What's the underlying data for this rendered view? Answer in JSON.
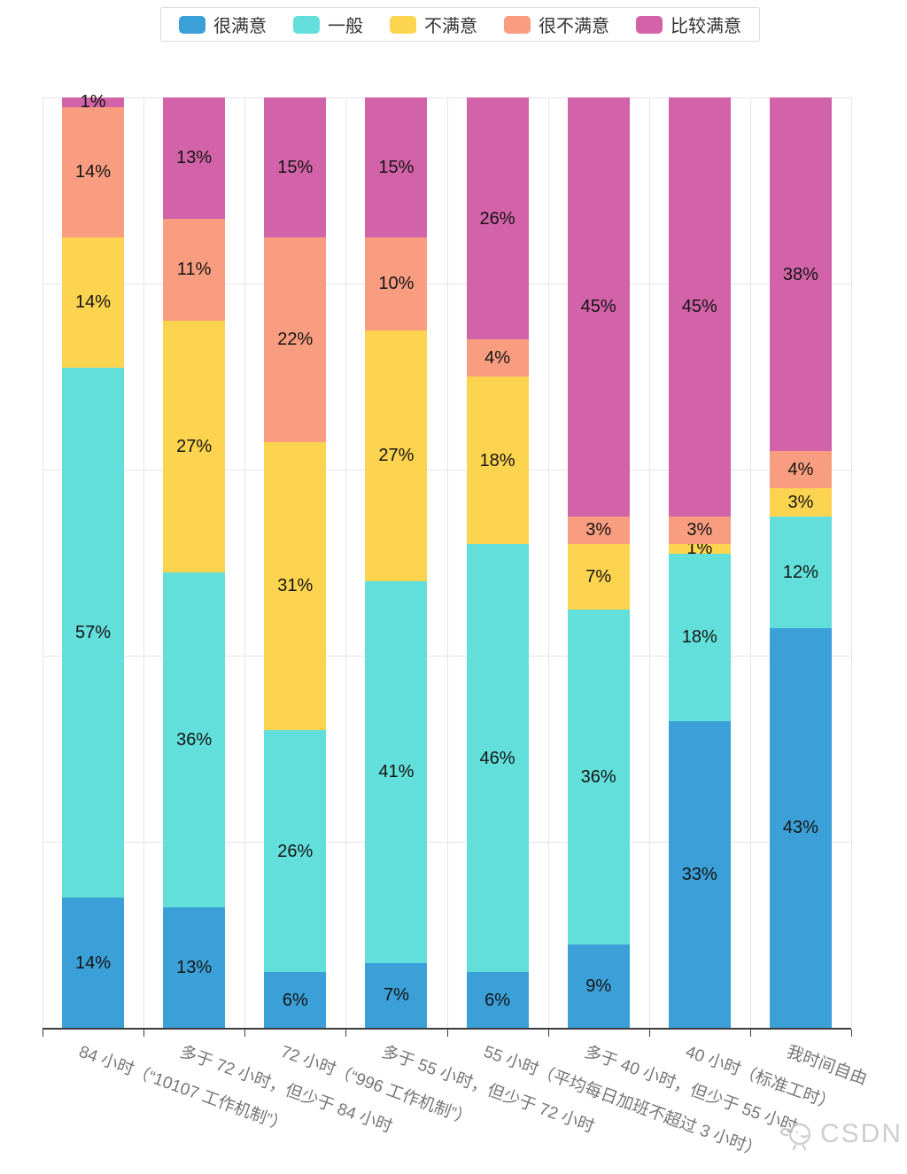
{
  "legend": {
    "items": [
      {
        "label": "很满意",
        "semantic": "very-satisfied",
        "color": "#3CA0D8"
      },
      {
        "label": "一般",
        "semantic": "neutral",
        "color": "#63DFDB"
      },
      {
        "label": "不满意",
        "semantic": "dissatisfied",
        "color": "#FCD44F"
      },
      {
        "label": "很不满意",
        "semantic": "very-dissatisfied",
        "color": "#F99D80"
      },
      {
        "label": "比较满意",
        "semantic": "fairly-satisfied",
        "color": "#D263A8"
      }
    ]
  },
  "chart_data": {
    "type": "bar",
    "stacked": true,
    "orientation": "vertical",
    "value_unit": "%",
    "ylim": [
      0,
      100
    ],
    "grid": true,
    "gridline_step_percent": 20,
    "legend_position": "top",
    "data_labels": "percent_centered_in_segment",
    "categories": [
      "84 小时（“10107 工作机制”）",
      "多于 72 小时，但少于 84 小时",
      "72 小时（“996 工作机制”）",
      "多于 55 小时，但少于 72 小时",
      "55 小时（平均每日加班不超过 3 小时）",
      "多于 40 小时，但少于 55 小时",
      "40 小时（标准工时）",
      "我时间自由"
    ],
    "series_stack_order": "bottom_to_top",
    "series": [
      {
        "name": "很满意",
        "color": "#3CA0D8",
        "values": [
          14,
          13,
          6,
          7,
          6,
          9,
          33,
          43
        ]
      },
      {
        "name": "一般",
        "color": "#63DFDB",
        "values": [
          57,
          36,
          26,
          41,
          46,
          36,
          18,
          12
        ]
      },
      {
        "name": "不满意",
        "color": "#FCD44F",
        "values": [
          14,
          27,
          31,
          27,
          18,
          7,
          1,
          3
        ]
      },
      {
        "name": "很不满意",
        "color": "#F99D80",
        "values": [
          14,
          11,
          22,
          10,
          4,
          3,
          3,
          4
        ]
      },
      {
        "name": "比较满意",
        "color": "#D263A8",
        "values": [
          1,
          13,
          15,
          15,
          26,
          45,
          45,
          38
        ]
      }
    ]
  },
  "watermark": {
    "text": "CSDN"
  }
}
